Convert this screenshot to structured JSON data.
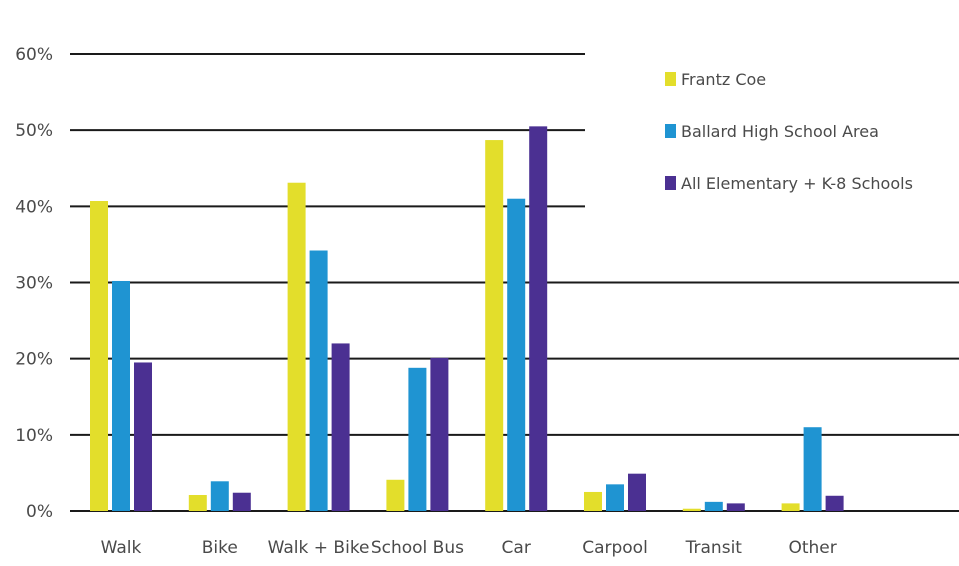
{
  "chart_data": {
    "type": "bar",
    "categories": [
      "Walk",
      "Bike",
      "Walk + Bike",
      "School Bus",
      "Car",
      "Carpool",
      "Transit",
      "Other"
    ],
    "series": [
      {
        "name": "Frantz Coe",
        "color": "#e3de2b",
        "values": [
          40.7,
          2.1,
          43.1,
          4.1,
          48.7,
          2.5,
          0.3,
          1.0
        ]
      },
      {
        "name": "Ballard High School Area",
        "color": "#1f94d2",
        "values": [
          30.2,
          3.9,
          34.2,
          18.8,
          41.0,
          3.5,
          1.2,
          11.0
        ]
      },
      {
        "name": "All Elementary + K-8 Schools",
        "color": "#4b3092",
        "values": [
          19.5,
          2.4,
          22.0,
          20.1,
          50.5,
          4.9,
          1.0,
          2.0
        ]
      }
    ],
    "y_ticks": [
      "0%",
      "10%",
      "20%",
      "30%",
      "40%",
      "50%",
      "60%"
    ],
    "ylim": [
      0,
      60
    ],
    "grid": true,
    "legend_position": "top-right"
  }
}
